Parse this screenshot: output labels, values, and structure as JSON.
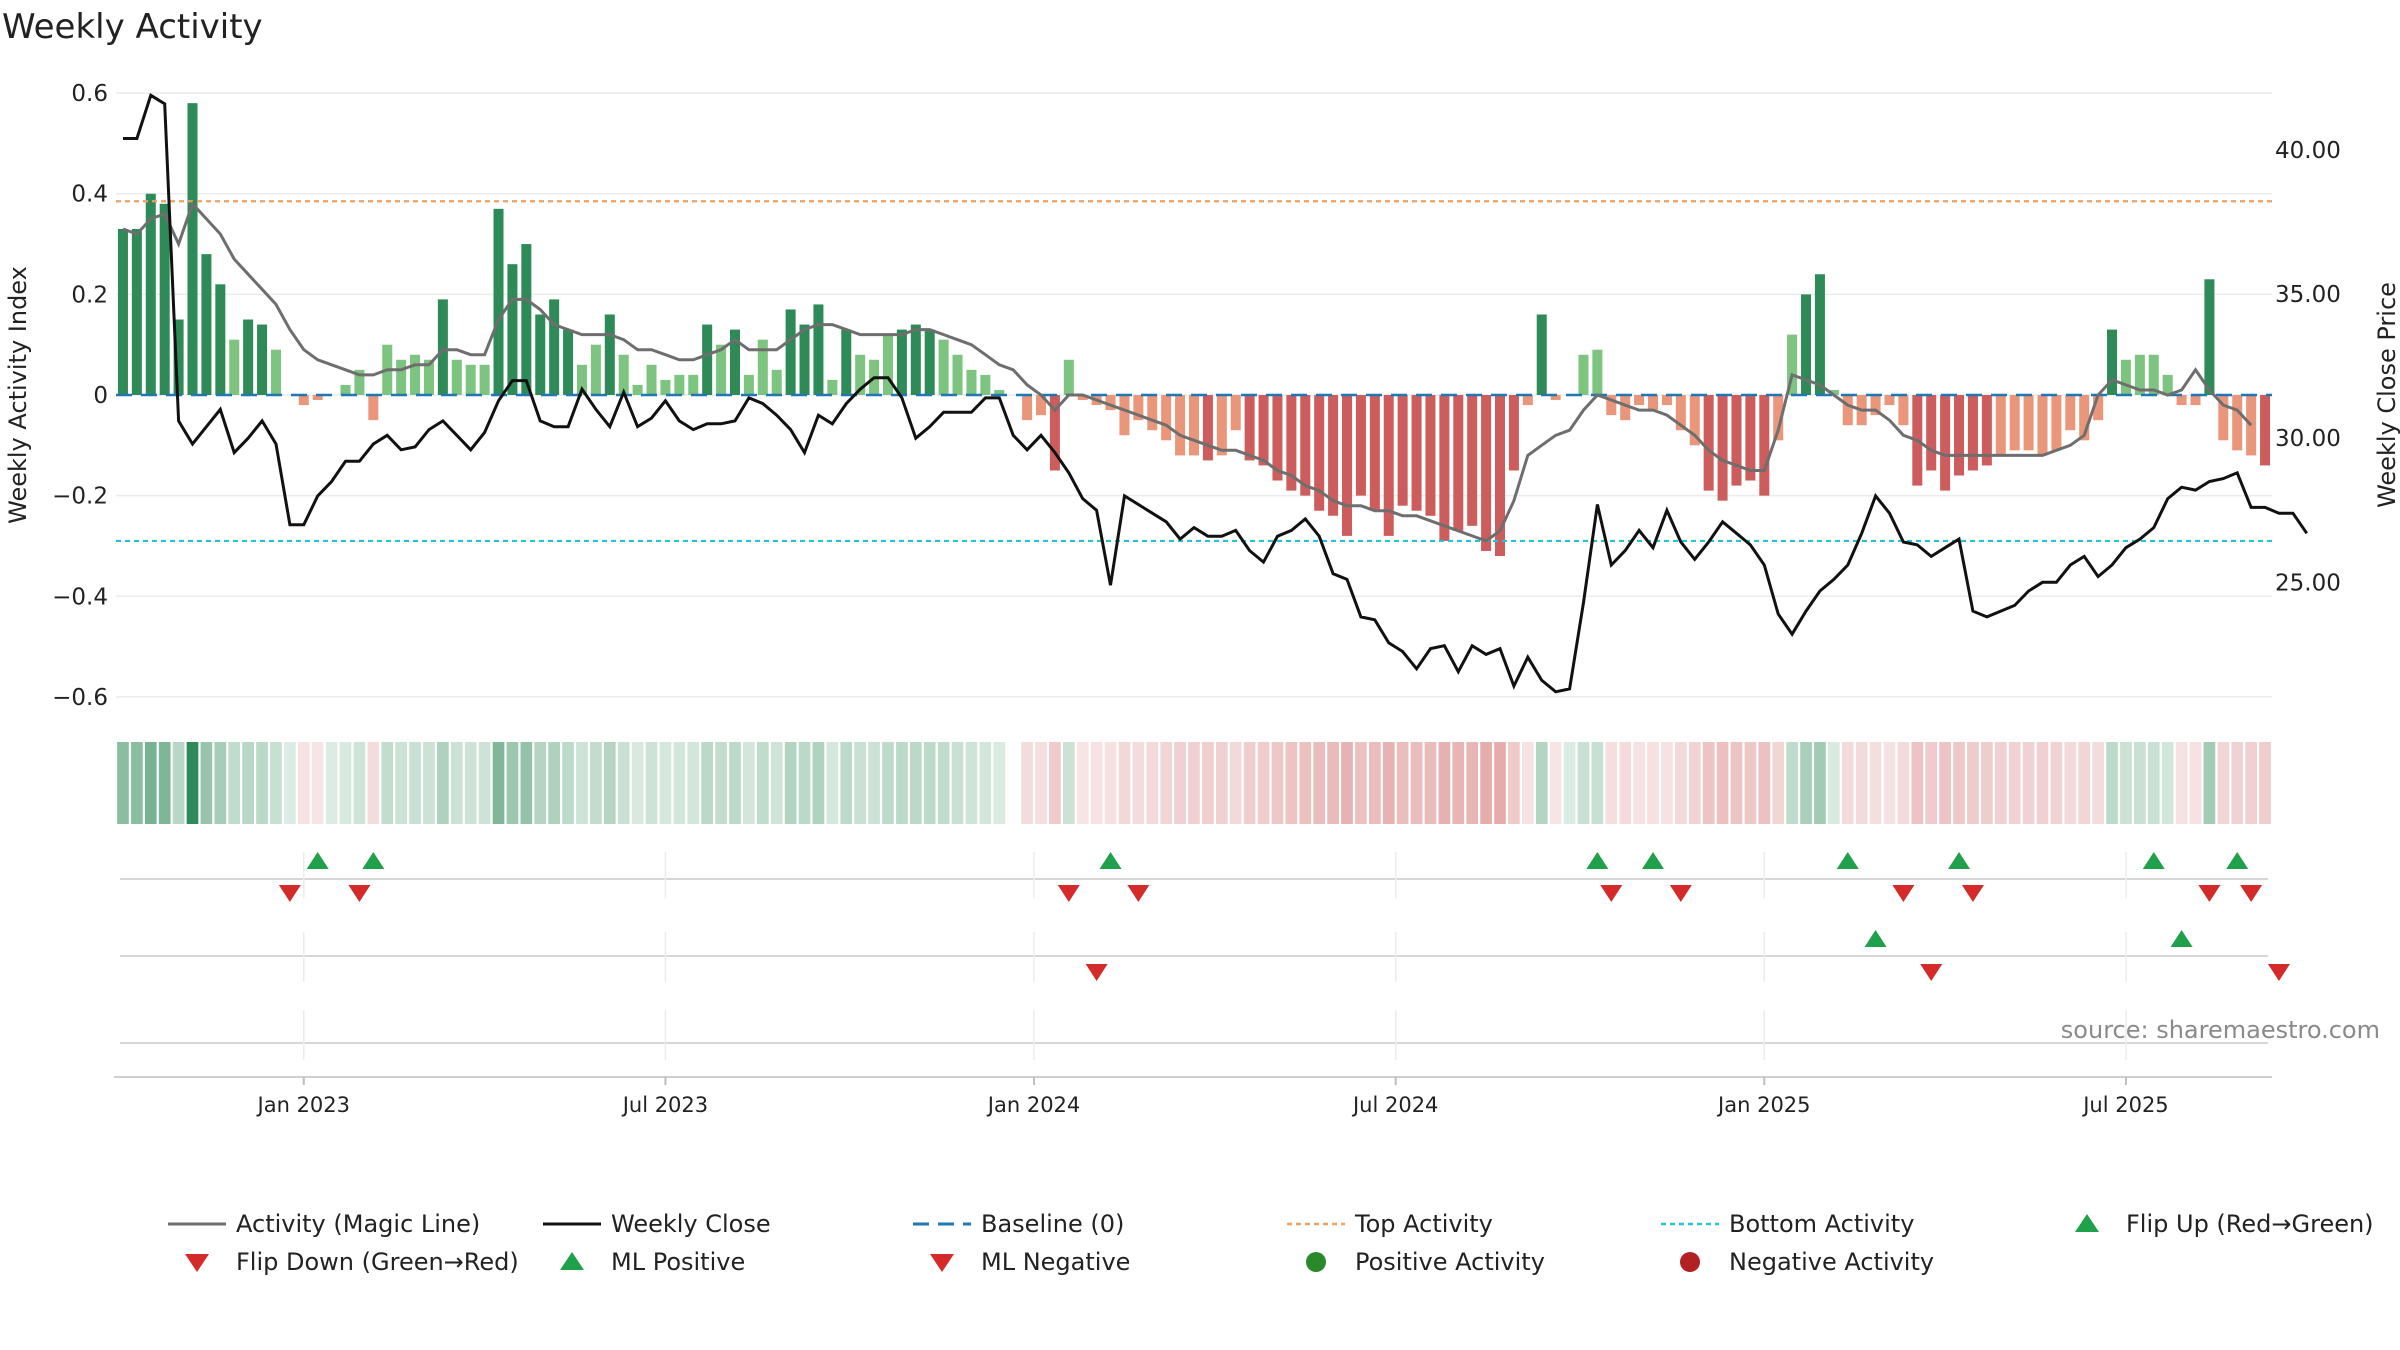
{
  "chart_data": {
    "type": "bar",
    "title": "Weekly Activity",
    "ylabel": "Weekly Activity Index",
    "y2label": "Weekly Close Price",
    "source": "source: sharemaestro.com",
    "ylim": [
      -0.63,
      0.63
    ],
    "y2lim": [
      20.5,
      42.5
    ],
    "yticks": [
      {
        "v": 0.6,
        "label": "0.6"
      },
      {
        "v": 0.4,
        "label": "0.4"
      },
      {
        "v": 0.2,
        "label": "0.2"
      },
      {
        "v": 0,
        "label": "0"
      },
      {
        "v": -0.2,
        "label": "−0.2"
      },
      {
        "v": -0.4,
        "label": "−0.4"
      },
      {
        "v": -0.6,
        "label": "−0.6"
      }
    ],
    "y2ticks": [
      {
        "v": 40,
        "label": "40.00"
      },
      {
        "v": 35,
        "label": "35.00"
      },
      {
        "v": 30,
        "label": "30.00"
      },
      {
        "v": 25,
        "label": "25.00"
      }
    ],
    "week_start": "2022-10-03",
    "xticks": [
      {
        "week": 13,
        "label": "Jan 2023"
      },
      {
        "week": 39,
        "label": "Jul 2023"
      },
      {
        "week": 65.5,
        "label": "Jan 2024"
      },
      {
        "week": 91.5,
        "label": "Jul 2024"
      },
      {
        "week": 118,
        "label": "Jan 2025"
      },
      {
        "week": 144,
        "label": "Jul 2025"
      }
    ],
    "top_activity": 0.385,
    "bottom_activity": -0.29,
    "activity": [
      0.33,
      0.33,
      0.4,
      0.38,
      0.15,
      0.58,
      0.28,
      0.22,
      0.11,
      0.15,
      0.14,
      0.09,
      0.0,
      -0.02,
      -0.01,
      0.0,
      0.02,
      0.05,
      -0.05,
      0.1,
      0.07,
      0.08,
      0.07,
      0.19,
      0.07,
      0.06,
      0.06,
      0.37,
      0.26,
      0.3,
      0.16,
      0.19,
      0.13,
      0.06,
      0.1,
      0.16,
      0.08,
      0.02,
      0.06,
      0.03,
      0.04,
      0.04,
      0.14,
      0.1,
      0.13,
      0.04,
      0.11,
      0.05,
      0.17,
      0.14,
      0.18,
      0.03,
      0.13,
      0.08,
      0.07,
      0.12,
      0.13,
      0.14,
      0.13,
      0.11,
      0.08,
      0.05,
      0.04,
      0.01,
      0.0,
      -0.05,
      -0.04,
      -0.15,
      0.07,
      -0.01,
      -0.02,
      -0.03,
      -0.08,
      -0.05,
      -0.07,
      -0.09,
      -0.12,
      -0.12,
      -0.13,
      -0.12,
      -0.07,
      -0.13,
      -0.14,
      -0.17,
      -0.19,
      -0.2,
      -0.23,
      -0.24,
      -0.28,
      -0.2,
      -0.23,
      -0.28,
      -0.22,
      -0.23,
      -0.24,
      -0.29,
      -0.27,
      -0.26,
      -0.31,
      -0.32,
      -0.15,
      -0.02,
      0.16,
      -0.01,
      0.0,
      0.08,
      0.09,
      -0.04,
      -0.05,
      -0.02,
      -0.03,
      -0.02,
      -0.07,
      -0.1,
      -0.19,
      -0.21,
      -0.18,
      -0.17,
      -0.2,
      -0.09,
      0.12,
      0.2,
      0.24,
      0.01,
      -0.06,
      -0.06,
      -0.04,
      -0.02,
      -0.06,
      -0.18,
      -0.15,
      -0.19,
      -0.16,
      -0.15,
      -0.14,
      -0.12,
      -0.11,
      -0.11,
      -0.12,
      -0.11,
      -0.07,
      -0.09,
      -0.05,
      0.13,
      0.07,
      0.08,
      0.08,
      0.04,
      -0.02,
      -0.02,
      0.23,
      -0.09,
      -0.11,
      -0.12,
      -0.14
    ],
    "magic_line": [
      0.33,
      0.32,
      0.35,
      0.36,
      0.3,
      0.38,
      0.35,
      0.32,
      0.27,
      0.24,
      0.21,
      0.18,
      0.13,
      0.09,
      0.07,
      0.06,
      0.05,
      0.04,
      0.04,
      0.05,
      0.05,
      0.06,
      0.06,
      0.09,
      0.09,
      0.08,
      0.08,
      0.15,
      0.19,
      0.19,
      0.17,
      0.14,
      0.13,
      0.12,
      0.12,
      0.12,
      0.11,
      0.09,
      0.09,
      0.08,
      0.07,
      0.07,
      0.08,
      0.09,
      0.11,
      0.09,
      0.09,
      0.09,
      0.11,
      0.13,
      0.14,
      0.14,
      0.13,
      0.12,
      0.12,
      0.12,
      0.12,
      0.13,
      0.13,
      0.12,
      0.11,
      0.1,
      0.08,
      0.06,
      0.05,
      0.02,
      0.0,
      -0.03,
      0.0,
      0.0,
      -0.01,
      -0.02,
      -0.03,
      -0.04,
      -0.05,
      -0.06,
      -0.08,
      -0.09,
      -0.1,
      -0.11,
      -0.11,
      -0.12,
      -0.13,
      -0.15,
      -0.16,
      -0.18,
      -0.19,
      -0.21,
      -0.22,
      -0.22,
      -0.23,
      -0.23,
      -0.24,
      -0.24,
      -0.25,
      -0.26,
      -0.27,
      -0.28,
      -0.29,
      -0.27,
      -0.21,
      -0.12,
      -0.1,
      -0.08,
      -0.07,
      -0.03,
      0.0,
      -0.01,
      -0.02,
      -0.03,
      -0.03,
      -0.04,
      -0.06,
      -0.08,
      -0.11,
      -0.13,
      -0.14,
      -0.15,
      -0.15,
      -0.07,
      0.04,
      0.03,
      0.02,
      0.0,
      -0.02,
      -0.03,
      -0.03,
      -0.05,
      -0.08,
      -0.09,
      -0.11,
      -0.12,
      -0.12,
      -0.12,
      -0.12,
      -0.12,
      -0.12,
      -0.12,
      -0.12,
      -0.11,
      -0.1,
      -0.08,
      0.0,
      0.03,
      0.02,
      0.01,
      0.01,
      0.0,
      0.01,
      0.05,
      0.01,
      -0.02,
      -0.03,
      -0.06
    ],
    "weekly_close": [
      40.4,
      40.4,
      41.9,
      41.6,
      30.6,
      29.8,
      30.4,
      31.0,
      29.5,
      30.0,
      30.6,
      29.8,
      27.0,
      27.0,
      28.0,
      28.5,
      29.2,
      29.2,
      29.8,
      30.1,
      29.6,
      29.7,
      30.3,
      30.6,
      30.1,
      29.6,
      30.2,
      31.3,
      32.0,
      32.0,
      30.6,
      30.4,
      30.4,
      31.7,
      31.0,
      30.4,
      31.6,
      30.4,
      30.7,
      31.3,
      30.6,
      30.3,
      30.5,
      30.5,
      30.6,
      31.4,
      31.2,
      30.8,
      30.3,
      29.5,
      30.8,
      30.5,
      31.2,
      31.7,
      32.1,
      32.1,
      31.4,
      30.0,
      30.4,
      30.9,
      30.9,
      30.9,
      31.4,
      31.4,
      30.1,
      29.6,
      30.1,
      29.5,
      28.8,
      27.9,
      27.5,
      24.9,
      28.0,
      27.7,
      27.4,
      27.1,
      26.5,
      26.9,
      26.6,
      26.6,
      26.8,
      26.1,
      25.7,
      26.6,
      26.8,
      27.2,
      26.6,
      25.3,
      25.1,
      23.8,
      23.7,
      22.9,
      22.6,
      22.0,
      22.7,
      22.8,
      21.9,
      22.8,
      22.5,
      22.7,
      21.4,
      22.4,
      21.6,
      21.2,
      21.3,
      24.3,
      27.7,
      25.6,
      26.1,
      26.8,
      26.2,
      27.5,
      26.4,
      25.8,
      26.4,
      27.1,
      26.7,
      26.3,
      25.6,
      23.9,
      23.2,
      24.0,
      24.7,
      25.1,
      25.6,
      26.7,
      28.0,
      27.4,
      26.4,
      26.3,
      25.9,
      26.2,
      26.5,
      24.0,
      23.8,
      24.0,
      24.2,
      24.7,
      25.0,
      25.0,
      25.6,
      25.9,
      25.2,
      25.6,
      26.2,
      26.5,
      26.9,
      27.9,
      28.3,
      28.2,
      28.5,
      28.6,
      28.8,
      27.6,
      27.6,
      27.4,
      27.4,
      26.7
    ],
    "flip_up": [
      14,
      18,
      71,
      106,
      110,
      124,
      132,
      146,
      152
    ],
    "flip_down": [
      12,
      17,
      68,
      73,
      107,
      112,
      128,
      133,
      150,
      153
    ],
    "ml_positive": [
      126,
      148
    ],
    "ml_negative": [
      70,
      130,
      155
    ],
    "legend": [
      {
        "key": "activity_magic_line",
        "label": "Activity (Magic Line)"
      },
      {
        "key": "weekly_close",
        "label": "Weekly Close"
      },
      {
        "key": "baseline",
        "label": "Baseline (0)"
      },
      {
        "key": "top_activity",
        "label": "Top Activity"
      },
      {
        "key": "bottom_activity",
        "label": "Bottom Activity"
      },
      {
        "key": "flip_up",
        "label": "Flip Up (Red→Green)"
      },
      {
        "key": "flip_down",
        "label": "Flip Down (Green→Red)"
      },
      {
        "key": "ml_positive",
        "label": "ML Positive"
      },
      {
        "key": "ml_negative",
        "label": "ML Negative"
      },
      {
        "key": "positive_activity",
        "label": "Positive Activity"
      },
      {
        "key": "negative_activity",
        "label": "Negative Activity"
      }
    ]
  },
  "colors": {
    "magic_line": "#6e6e6e",
    "close": "#111111",
    "baseline": "#1f77b4",
    "top": "#f0a060",
    "bottom": "#22c4d6",
    "up_marker": "#1fa04a",
    "down_marker": "#d42a2a",
    "pos_strong": "#2e8b57",
    "pos_light": "#7cc47f",
    "neg_strong": "#cd5c5c",
    "neg_light": "#e9967a",
    "pos_dot": "#2a8a2a",
    "neg_dot": "#b22222"
  }
}
